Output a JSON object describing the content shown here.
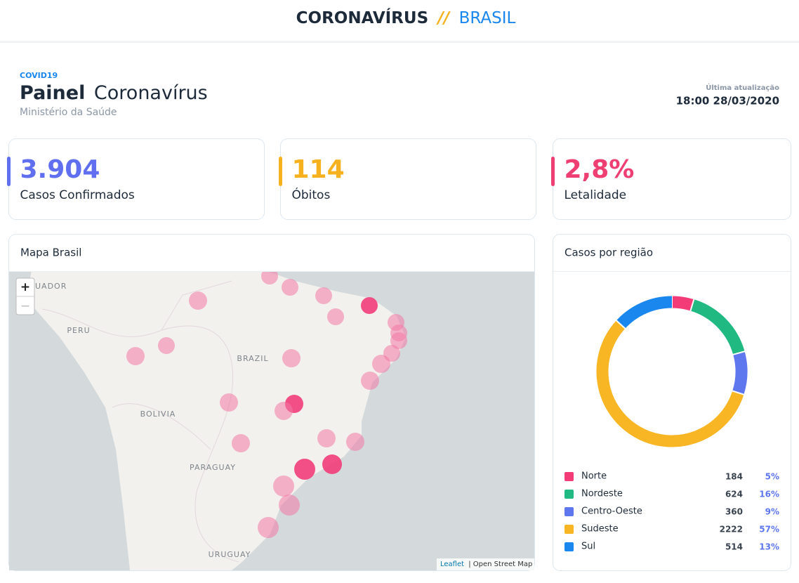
{
  "header": {
    "brand": "CORONAVÍRUS",
    "separator": "//",
    "country": "BRASIL"
  },
  "panel": {
    "tag": "COVID19",
    "title_bold": "Painel",
    "title_rest": "Coronavírus",
    "subtitle": "Ministério da Saúde",
    "update_label": "Última atualização",
    "update_time": "18:00 28/03/2020"
  },
  "cards": [
    {
      "value": "3.904",
      "label": "Casos Confirmados",
      "color": "#5f6ff0"
    },
    {
      "value": "114",
      "label": "Óbitos",
      "color": "#f5b21e"
    },
    {
      "value": "2,8%",
      "label": "Letalidade",
      "color": "#ef3f72"
    }
  ],
  "map": {
    "title": "Mapa Brasil",
    "zoom_in": "+",
    "zoom_out": "−",
    "labels": [
      "UADOR",
      "PERU",
      "BRAZIL",
      "BOLIVIA",
      "PARAGUAY",
      "URUGUAY"
    ],
    "attribution_link": "Leaflet",
    "attribution_rest": "| Open Street Map"
  },
  "chart_data": {
    "type": "pie",
    "title": "Casos por região",
    "categories": [
      "Norte",
      "Nordeste",
      "Centro-Oeste",
      "Sudeste",
      "Sul"
    ],
    "values": [
      184,
      624,
      360,
      2222,
      514
    ],
    "colors": [
      "#f23b77",
      "#20b981",
      "#5f77ee",
      "#f8b624",
      "#1987ee"
    ],
    "shares": [
      {
        "value": 5,
        "label": "5%"
      },
      {
        "value": 16,
        "label": "16%"
      },
      {
        "value": 9,
        "label": "9%"
      },
      {
        "value": 57,
        "label": "57%"
      },
      {
        "value": 13,
        "label": "13%"
      }
    ]
  }
}
